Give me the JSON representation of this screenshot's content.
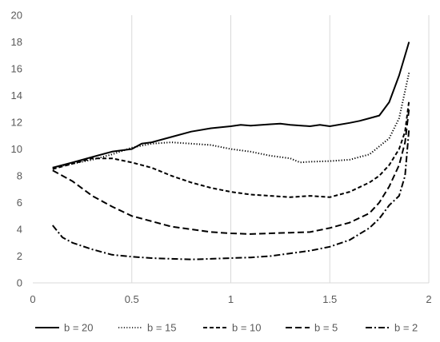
{
  "chart_data": {
    "type": "line",
    "title": "",
    "xlabel": "",
    "ylabel": "",
    "xlim": [
      0,
      2
    ],
    "ylim": [
      0,
      20
    ],
    "x_ticks": [
      "0",
      "0.5",
      "1",
      "1.5",
      "2"
    ],
    "y_ticks": [
      "0",
      "2",
      "4",
      "6",
      "8",
      "10",
      "12",
      "14",
      "16",
      "18",
      "20"
    ],
    "grid": "vertical gridlines",
    "legend_position": "bottom",
    "series": [
      {
        "name": "b = 20",
        "dash": "solid",
        "x": [
          0.1,
          0.2,
          0.3,
          0.4,
          0.5,
          0.55,
          0.6,
          0.7,
          0.8,
          0.9,
          1.0,
          1.05,
          1.1,
          1.2,
          1.25,
          1.3,
          1.4,
          1.45,
          1.5,
          1.6,
          1.65,
          1.7,
          1.75,
          1.8,
          1.85,
          1.9
        ],
        "y": [
          8.6,
          9.0,
          9.4,
          9.8,
          10.0,
          10.4,
          10.5,
          10.9,
          11.3,
          11.55,
          11.7,
          11.8,
          11.75,
          11.85,
          11.9,
          11.8,
          11.7,
          11.8,
          11.7,
          11.95,
          12.1,
          12.3,
          12.5,
          13.5,
          15.5,
          18.0
        ]
      },
      {
        "name": "b = 15",
        "dash": "dotted",
        "x": [
          0.1,
          0.2,
          0.3,
          0.4,
          0.5,
          0.6,
          0.7,
          0.8,
          0.9,
          1.0,
          1.1,
          1.2,
          1.3,
          1.35,
          1.4,
          1.5,
          1.6,
          1.7,
          1.75,
          1.8,
          1.85,
          1.9
        ],
        "y": [
          8.6,
          8.9,
          9.2,
          9.6,
          10.1,
          10.4,
          10.5,
          10.4,
          10.3,
          10.0,
          9.8,
          9.5,
          9.3,
          9.0,
          9.05,
          9.1,
          9.2,
          9.6,
          10.2,
          10.8,
          12.3,
          15.7
        ]
      },
      {
        "name": "b = 10",
        "dash": "dashed",
        "x": [
          0.1,
          0.2,
          0.3,
          0.4,
          0.5,
          0.6,
          0.7,
          0.8,
          0.9,
          1.0,
          1.1,
          1.2,
          1.3,
          1.4,
          1.5,
          1.6,
          1.7,
          1.75,
          1.8,
          1.85,
          1.88,
          1.9
        ],
        "y": [
          8.5,
          8.9,
          9.3,
          9.3,
          9.0,
          8.6,
          8.0,
          7.5,
          7.1,
          6.8,
          6.6,
          6.5,
          6.4,
          6.5,
          6.4,
          6.8,
          7.5,
          8.0,
          8.8,
          10.0,
          11.3,
          13.6
        ]
      },
      {
        "name": "b = 5",
        "dash": "long-dash",
        "x": [
          0.1,
          0.2,
          0.3,
          0.4,
          0.5,
          0.6,
          0.7,
          0.8,
          0.9,
          1.0,
          1.1,
          1.2,
          1.3,
          1.4,
          1.5,
          1.6,
          1.7,
          1.75,
          1.8,
          1.85,
          1.88,
          1.9
        ],
        "y": [
          8.4,
          7.6,
          6.5,
          5.7,
          5.0,
          4.6,
          4.2,
          4.0,
          3.8,
          3.7,
          3.65,
          3.7,
          3.75,
          3.8,
          4.1,
          4.5,
          5.2,
          6.0,
          7.2,
          8.8,
          10.5,
          13.0
        ]
      },
      {
        "name": "b = 2",
        "dash": "dash-dot",
        "x": [
          0.1,
          0.15,
          0.2,
          0.3,
          0.4,
          0.5,
          0.6,
          0.7,
          0.8,
          0.9,
          1.0,
          1.1,
          1.2,
          1.3,
          1.4,
          1.5,
          1.6,
          1.7,
          1.75,
          1.8,
          1.85,
          1.88,
          1.9
        ],
        "y": [
          4.3,
          3.4,
          3.0,
          2.5,
          2.1,
          1.95,
          1.85,
          1.8,
          1.75,
          1.8,
          1.85,
          1.9,
          2.0,
          2.2,
          2.4,
          2.7,
          3.2,
          4.1,
          4.8,
          5.8,
          6.5,
          8.0,
          11.5
        ]
      }
    ]
  }
}
